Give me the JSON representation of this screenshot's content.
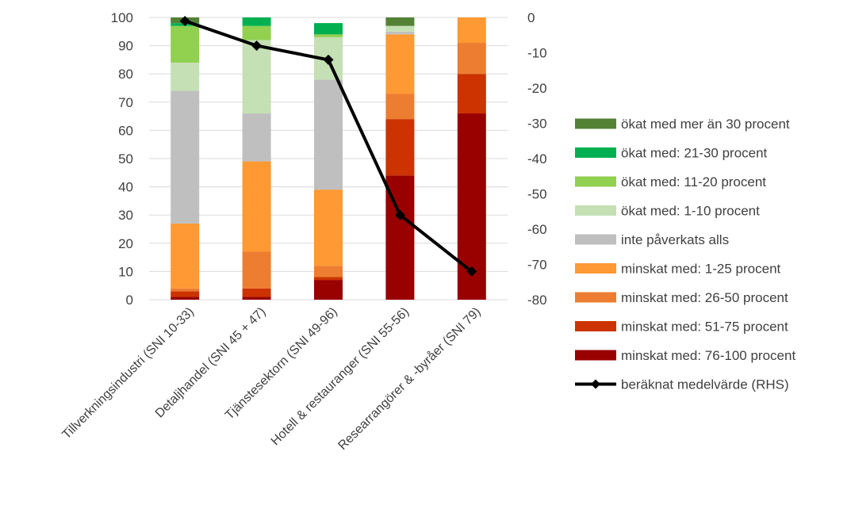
{
  "chart_data": {
    "type": "bar",
    "stacked": true,
    "title": "",
    "xlabel": "",
    "ylabel": "",
    "ylim": [
      0,
      100
    ],
    "y2lim": [
      -80,
      0
    ],
    "grid": true,
    "legend_position": "right",
    "categories": [
      "Tillverkningsindustri (SNI 10-33)",
      "Detaljhandel (SNI 45 + 47)",
      "Tjänstesektorn (SNI 49-96)",
      "Hotell & restauranger (SNI 55-56)",
      "Researrangörer & -byråer (SNI 79)"
    ],
    "y_ticks": [
      "0",
      "10",
      "20",
      "30",
      "40",
      "50",
      "60",
      "70",
      "80",
      "90",
      "100"
    ],
    "y2_ticks": [
      "0",
      "-10",
      "-20",
      "-30",
      "-40",
      "-50",
      "-60",
      "-70",
      "-80"
    ],
    "series": [
      {
        "name": "minskat med: 76-100 procent",
        "color": "#990000",
        "values": [
          1,
          1,
          7,
          44,
          66
        ]
      },
      {
        "name": "minskat med: 51-75 procent",
        "color": "#CC3300",
        "values": [
          2,
          3,
          1,
          20,
          14
        ]
      },
      {
        "name": "minskat med: 26-50 procent",
        "color": "#ED7D31",
        "values": [
          1,
          13,
          4,
          9,
          11
        ]
      },
      {
        "name": "minskat med: 1-25 procent",
        "color": "#FF9933",
        "values": [
          23,
          32,
          27,
          21,
          9
        ]
      },
      {
        "name": "inte påverkats alls",
        "color": "#BFBFBF",
        "values": [
          47,
          17,
          39,
          1,
          0
        ]
      },
      {
        "name": "ökat med: 1-10 procent",
        "color": "#C5E0B4",
        "values": [
          10,
          26,
          15,
          2,
          0
        ]
      },
      {
        "name": "ökat med: 11-20 procent",
        "color": "#92D050",
        "values": [
          13,
          5,
          1,
          0,
          0
        ]
      },
      {
        "name": "ökat med: 21-30 procent",
        "color": "#00B050",
        "values": [
          1,
          3,
          4,
          0,
          0
        ]
      },
      {
        "name": "ökat med mer än 30 procent",
        "color": "#548235",
        "values": [
          2,
          0,
          0,
          3,
          0
        ]
      }
    ],
    "line": {
      "name": "beräknat medelvärde (RHS)",
      "axis": "right",
      "color": "#000000",
      "marker": "diamond",
      "values": [
        -1,
        -8,
        -12,
        -56,
        -72
      ]
    },
    "legend_order": [
      "ökat med mer än 30 procent",
      "ökat med: 21-30 procent",
      "ökat med: 11-20 procent",
      "ökat med: 1-10 procent",
      "inte påverkats alls",
      "minskat med: 1-25 procent",
      "minskat med: 26-50 procent",
      "minskat med: 51-75 procent",
      "minskat med: 76-100 procent",
      "beräknat medelvärde (RHS)"
    ]
  }
}
